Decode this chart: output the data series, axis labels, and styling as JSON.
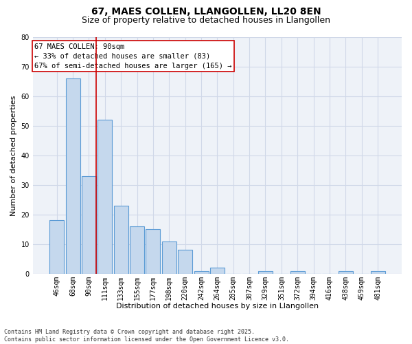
{
  "title": "67, MAES COLLEN, LLANGOLLEN, LL20 8EN",
  "subtitle": "Size of property relative to detached houses in Llangollen",
  "xlabel": "Distribution of detached houses by size in Llangollen",
  "ylabel": "Number of detached properties",
  "categories": [
    "46sqm",
    "68sqm",
    "90sqm",
    "111sqm",
    "133sqm",
    "155sqm",
    "177sqm",
    "198sqm",
    "220sqm",
    "242sqm",
    "264sqm",
    "285sqm",
    "307sqm",
    "329sqm",
    "351sqm",
    "372sqm",
    "394sqm",
    "416sqm",
    "438sqm",
    "459sqm",
    "481sqm"
  ],
  "values": [
    18,
    66,
    33,
    52,
    23,
    16,
    15,
    11,
    8,
    1,
    2,
    0,
    0,
    1,
    0,
    1,
    0,
    0,
    1,
    0,
    1
  ],
  "bar_color": "#c5d8ed",
  "bar_edge_color": "#5b9bd5",
  "highlight_index": 2,
  "highlight_line_color": "#cc0000",
  "annotation_text": "67 MAES COLLEN: 90sqm\n← 33% of detached houses are smaller (83)\n67% of semi-detached houses are larger (165) →",
  "annotation_box_color": "#ffffff",
  "annotation_box_edge_color": "#cc0000",
  "ylim": [
    0,
    80
  ],
  "yticks": [
    0,
    10,
    20,
    30,
    40,
    50,
    60,
    70,
    80
  ],
  "grid_color": "#d0d8e8",
  "background_color": "#eef2f8",
  "footer_text": "Contains HM Land Registry data © Crown copyright and database right 2025.\nContains public sector information licensed under the Open Government Licence v3.0.",
  "title_fontsize": 10,
  "subtitle_fontsize": 9,
  "xlabel_fontsize": 8,
  "ylabel_fontsize": 8,
  "tick_fontsize": 7,
  "annotation_fontsize": 7.5,
  "footer_fontsize": 6
}
